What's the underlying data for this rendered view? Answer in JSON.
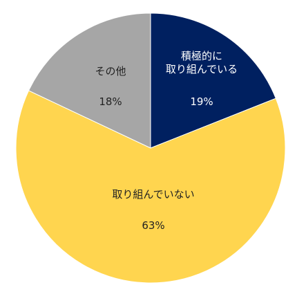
{
  "chart_data": {
    "type": "pie",
    "start_angle": "12 o'clock",
    "direction": "clockwise",
    "slices": [
      {
        "label_lines": [
          "積極的に",
          "取り組んでいる"
        ],
        "value": 19,
        "value_label": "19%",
        "color": "#002060",
        "text_color": "#ffffff"
      },
      {
        "label_lines": [
          "取り組んでいない"
        ],
        "value": 63,
        "value_label": "63%",
        "color": "#ffd54f",
        "text_color": "#222222"
      },
      {
        "label_lines": [
          "その他"
        ],
        "value": 18,
        "value_label": "18%",
        "color": "#a6a6a6",
        "text_color": "#222222"
      }
    ]
  }
}
